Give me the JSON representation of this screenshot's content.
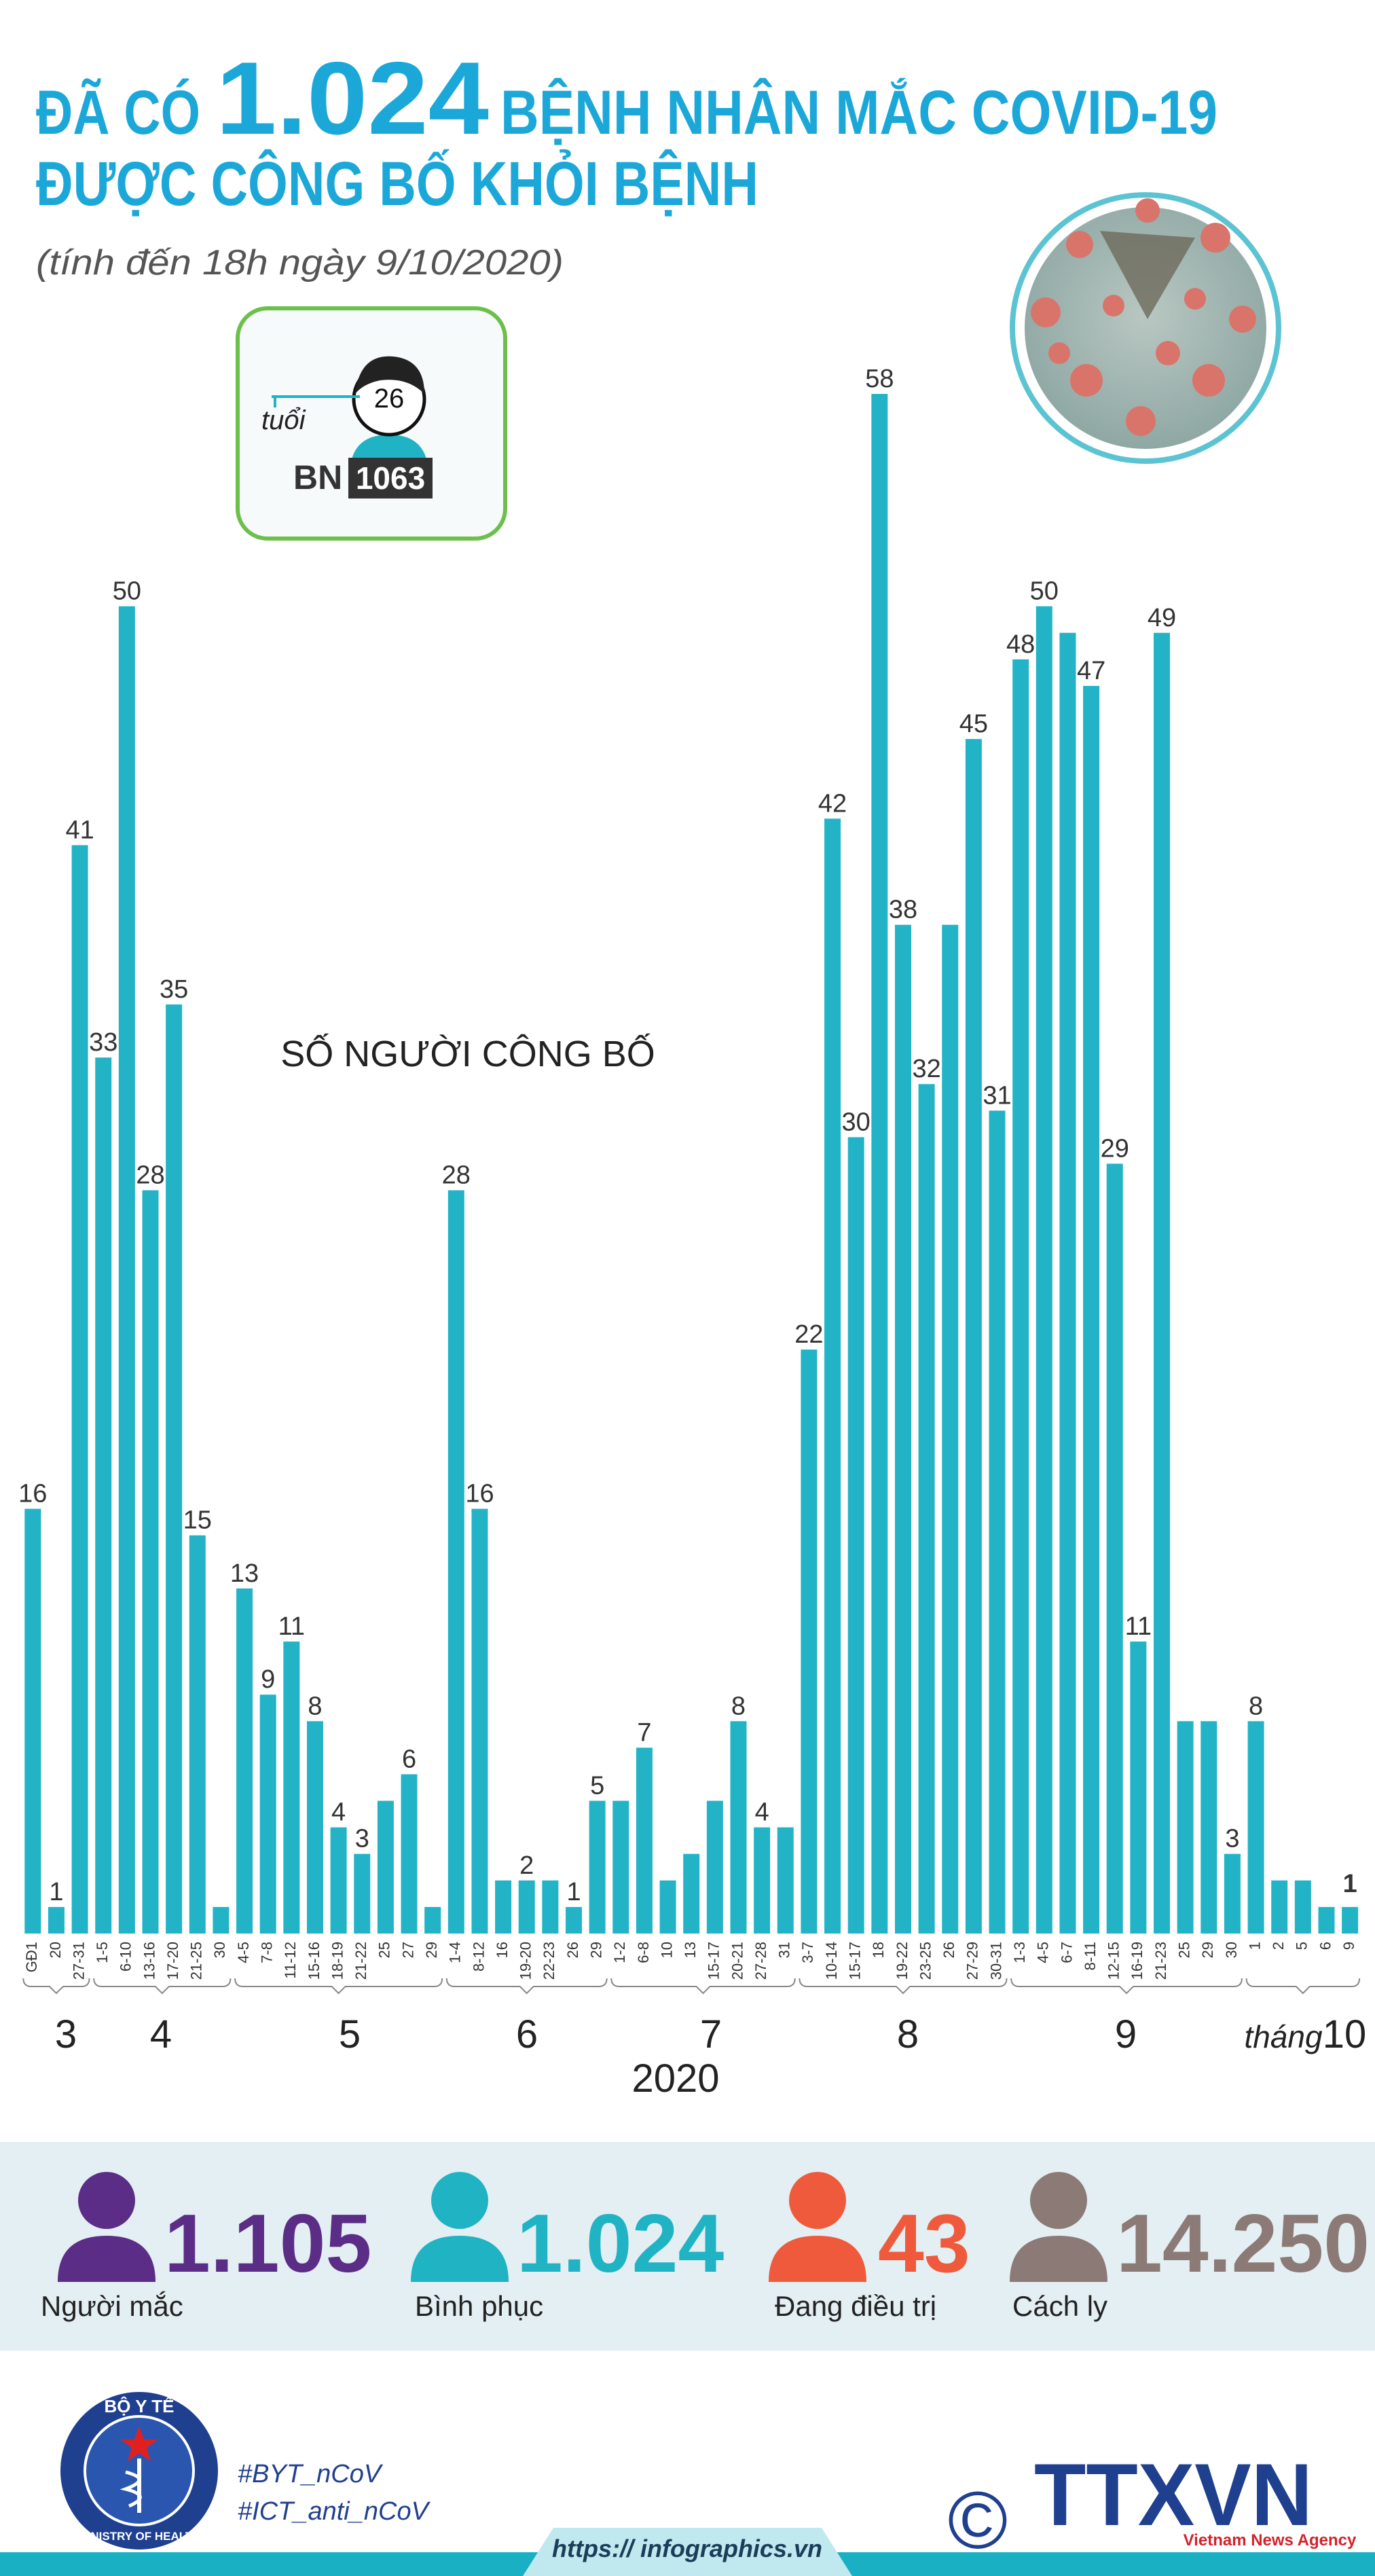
{
  "header": {
    "title_prefix": "ĐÃ CÓ",
    "title_number": "1.024",
    "title_suffix": "BỆNH NHÂN MẮC COVID-19",
    "title_line2": "ĐƯỢC CÔNG BỐ KHỎI BỆNH",
    "subtitle": "(tính đến 18h ngày 9/10/2020)"
  },
  "legend_box": {
    "age": "26",
    "age_label": "tuổi",
    "patient_prefix": "BN",
    "patient_id": "1063"
  },
  "chart_data": {
    "type": "bar",
    "title": "SỐ NGƯỜI CÔNG BỐ",
    "color": "#22b4c6",
    "categories": [
      "GĐ1",
      "20",
      "27-31",
      "1-5",
      "6-10",
      "13-16",
      "17-20",
      "21-25",
      "30",
      "4-5",
      "7-8",
      "11-12",
      "15-16",
      "18-19",
      "21-22",
      "25",
      "27",
      "29",
      "1-4",
      "8-12",
      "16",
      "19-20",
      "22-23",
      "26",
      "29",
      "1-2",
      "6-8",
      "10",
      "13",
      "15-17",
      "20-21",
      "27-28",
      "31",
      "3-7",
      "10-14",
      "15-17",
      "18",
      "19-22",
      "23-25",
      "26",
      "27-29",
      "30-31",
      "1-3",
      "4-5",
      "6-7",
      "8-11",
      "12-15",
      "16-19",
      "21-23",
      "25",
      "29",
      "30",
      "1",
      "2",
      "5",
      "6",
      "9"
    ],
    "values": [
      16,
      1,
      41,
      33,
      50,
      28,
      35,
      15,
      1,
      13,
      9,
      11,
      8,
      4,
      3,
      5,
      6,
      1,
      28,
      16,
      2,
      2,
      2,
      1,
      5,
      5,
      7,
      2,
      3,
      5,
      8,
      4,
      4,
      22,
      42,
      30,
      58,
      38,
      32,
      38,
      45,
      31,
      48,
      50,
      49,
      47,
      29,
      11,
      49,
      8,
      8,
      3,
      8,
      2,
      2,
      1,
      1
    ],
    "value_labels": [
      16,
      1,
      41,
      33,
      50,
      28,
      35,
      15,
      null,
      13,
      9,
      11,
      8,
      4,
      3,
      null,
      6,
      null,
      28,
      16,
      null,
      2,
      null,
      1,
      5,
      null,
      7,
      null,
      null,
      null,
      8,
      4,
      null,
      22,
      42,
      30,
      58,
      38,
      32,
      null,
      45,
      31,
      48,
      50,
      null,
      47,
      29,
      11,
      49,
      null,
      null,
      3,
      8,
      null,
      null,
      null,
      1
    ],
    "months": [
      "3",
      "4",
      "5",
      "6",
      "7",
      "8",
      "9",
      "10"
    ],
    "month_prefix": "tháng",
    "year": "2020"
  },
  "stats": [
    {
      "value": "1.105",
      "label": "Người mắc"
    },
    {
      "value": "1.024",
      "label": "Bình phục"
    },
    {
      "value": "43",
      "label": "Đang điều trị"
    },
    {
      "value": "14.250",
      "label": "Cách ly"
    }
  ],
  "footer": {
    "ministry_top": "BỘ Y TẾ",
    "ministry_bottom": "MINISTRY OF HEALTH",
    "hashtag1": "#BYT_nCoV",
    "hashtag2": "#ICT_anti_nCoV",
    "copyright": "©",
    "agency": "TTXVN",
    "agency_sub": "Vietnam News Agency",
    "url": "https:// infographics.vn"
  }
}
